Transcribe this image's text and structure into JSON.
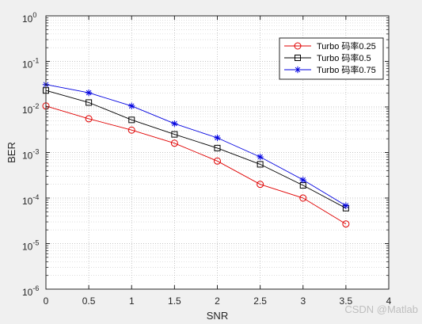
{
  "chart_data": {
    "type": "line",
    "xlabel": "SNR",
    "ylabel": "BER",
    "xlim": [
      0,
      4
    ],
    "ylim": [
      1e-06,
      1
    ],
    "yscale": "log",
    "grid": true,
    "legend_position": "top-right",
    "x_ticks": [
      "0",
      "0.5",
      "1",
      "1.5",
      "2",
      "2.5",
      "3",
      "3.5",
      "4"
    ],
    "y_ticks": [
      {
        "base": "10",
        "exp": "0"
      },
      {
        "base": "10",
        "exp": "-1"
      },
      {
        "base": "10",
        "exp": "-2"
      },
      {
        "base": "10",
        "exp": "-3"
      },
      {
        "base": "10",
        "exp": "-4"
      },
      {
        "base": "10",
        "exp": "-5"
      },
      {
        "base": "10",
        "exp": "-6"
      }
    ],
    "x": [
      0,
      0.5,
      1,
      1.5,
      2,
      2.5,
      3,
      3.5
    ],
    "series": [
      {
        "name": "Turbo 码率0.25",
        "color": "#e00000",
        "marker": "circle",
        "values": [
          0.0105,
          0.0055,
          0.0031,
          0.0016,
          0.00065,
          0.0002,
          0.0001,
          2.7e-05
        ]
      },
      {
        "name": "Turbo 码率0.5",
        "color": "#000000",
        "marker": "square",
        "values": [
          0.023,
          0.0125,
          0.0052,
          0.0025,
          0.00125,
          0.00055,
          0.00019,
          6e-05
        ]
      },
      {
        "name": "Turbo 码率0.75",
        "color": "#0000e0",
        "marker": "asterisk",
        "values": [
          0.031,
          0.0205,
          0.0105,
          0.0043,
          0.0021,
          0.0008,
          0.00025,
          6.8e-05
        ]
      }
    ]
  },
  "watermark": "CSDN @Matlab"
}
